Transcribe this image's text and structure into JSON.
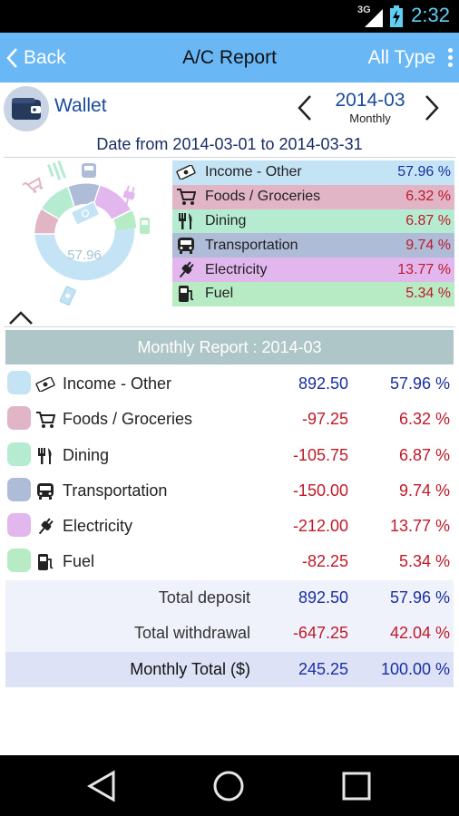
{
  "status_bar": {
    "network": "3G",
    "time": "2:32"
  },
  "action_bar": {
    "back_label": "Back",
    "title": "A/C Report",
    "filter_label": "All Type"
  },
  "wallet": {
    "name": "Wallet",
    "period": "2014-03",
    "period_type": "Monthly"
  },
  "date_range": "Date from 2014-03-01 to 2014-03-31",
  "donut": {
    "center_label": "57.96"
  },
  "legend": [
    {
      "name": "Income - Other",
      "pct": "57.96 %",
      "icon": "money-icon",
      "bg": "#c4e4f6",
      "pct_color": "#1a2fa0"
    },
    {
      "name": "Foods / Groceries",
      "pct": "6.32 %",
      "icon": "cart-icon",
      "bg": "#e1b4c6",
      "pct_color": "#c0192a"
    },
    {
      "name": "Dining",
      "pct": "6.87 %",
      "icon": "fork-knife-icon",
      "bg": "#b5ecd1",
      "pct_color": "#c0192a"
    },
    {
      "name": "Transportation",
      "pct": "9.74 %",
      "icon": "bus-icon",
      "bg": "#aebcd8",
      "pct_color": "#c0192a"
    },
    {
      "name": "Electricity",
      "pct": "13.77 %",
      "icon": "plug-icon",
      "bg": "#e2b7ee",
      "pct_color": "#c0192a"
    },
    {
      "name": "Fuel",
      "pct": "5.34 %",
      "icon": "fuel-pump-icon",
      "bg": "#b7ebc4",
      "pct_color": "#c0192a"
    }
  ],
  "report": {
    "header": "Monthly Report : 2014-03",
    "rows": [
      {
        "name": "Income - Other",
        "amount": "892.50",
        "pct": "57.96 %",
        "swatch": "#c4e4f6",
        "positive": true,
        "icon": "money-icon"
      },
      {
        "name": "Foods / Groceries",
        "amount": "-97.25",
        "pct": "6.32 %",
        "swatch": "#e1b4c6",
        "positive": false,
        "icon": "cart-icon"
      },
      {
        "name": "Dining",
        "amount": "-105.75",
        "pct": "6.87 %",
        "swatch": "#b5ecd1",
        "positive": false,
        "icon": "fork-knife-icon"
      },
      {
        "name": "Transportation",
        "amount": "-150.00",
        "pct": "9.74 %",
        "swatch": "#aebcd8",
        "positive": false,
        "icon": "bus-icon"
      },
      {
        "name": "Electricity",
        "amount": "-212.00",
        "pct": "13.77 %",
        "swatch": "#e2b7ee",
        "positive": false,
        "icon": "plug-icon"
      },
      {
        "name": "Fuel",
        "amount": "-82.25",
        "pct": "5.34 %",
        "swatch": "#b7ebc4",
        "positive": false,
        "icon": "fuel-pump-icon"
      }
    ],
    "totals": [
      {
        "label": "Total deposit",
        "amount": "892.50",
        "pct": "57.96 %",
        "amount_color": "#1a2fa0",
        "pct_color": "#1a2fa0"
      },
      {
        "label": "Total withdrawal",
        "amount": "-647.25",
        "pct": "42.04 %",
        "amount_color": "#c0192a",
        "pct_color": "#c0192a"
      },
      {
        "label": "Monthly Total ($)",
        "amount": "245.25",
        "pct": "100.00 %",
        "amount_color": "#1a2fa0",
        "pct_color": "#1a2fa0"
      }
    ]
  },
  "colors": {
    "action_bar": "#69b7f5",
    "accent_blue": "#1a2fa0",
    "negative_red": "#c0192a"
  }
}
